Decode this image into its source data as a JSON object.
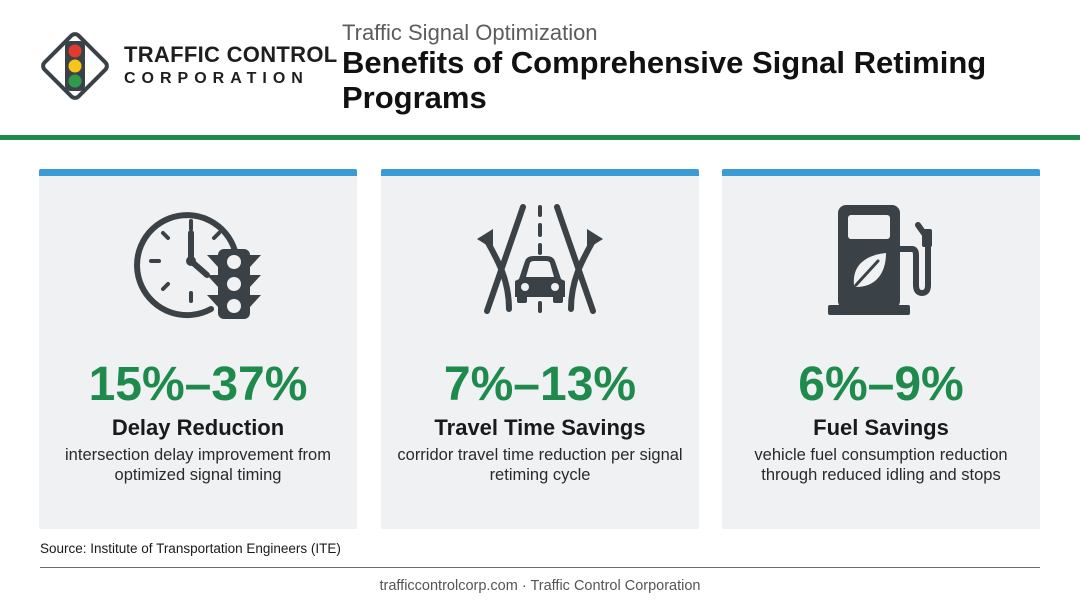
{
  "header": {
    "brand_name": "TRAFFIC CONTROL",
    "brand_sub": "CORPORATION",
    "kicker": "Traffic Signal Optimization",
    "title": "Benefits of Comprehensive Signal Retiming Programs"
  },
  "cards": [
    {
      "icon": "clock-traffic-light-icon",
      "value": "15%–37%",
      "label": "Delay Reduction",
      "description": "intersection delay improvement from optimized signal timing"
    },
    {
      "icon": "road-car-icon",
      "value": "7%–13%",
      "label": "Travel Time Savings",
      "description": "corridor travel time reduction per signal retiming cycle"
    },
    {
      "icon": "fuel-pump-leaf-icon",
      "value": "6%–9%",
      "label": "Fuel Savings",
      "description": "vehicle fuel consumption reduction through reduced idling and stops"
    }
  ],
  "source": "Source: Institute of Transportation Engineers (ITE)",
  "footer": "trafficcontrolcorp.com · Traffic Control Corporation",
  "colors": {
    "accent_green": "#1e8a4c",
    "accent_blue": "#3a9bd5",
    "icon_dark": "#3b4247",
    "card_bg": "#eff1f2"
  }
}
